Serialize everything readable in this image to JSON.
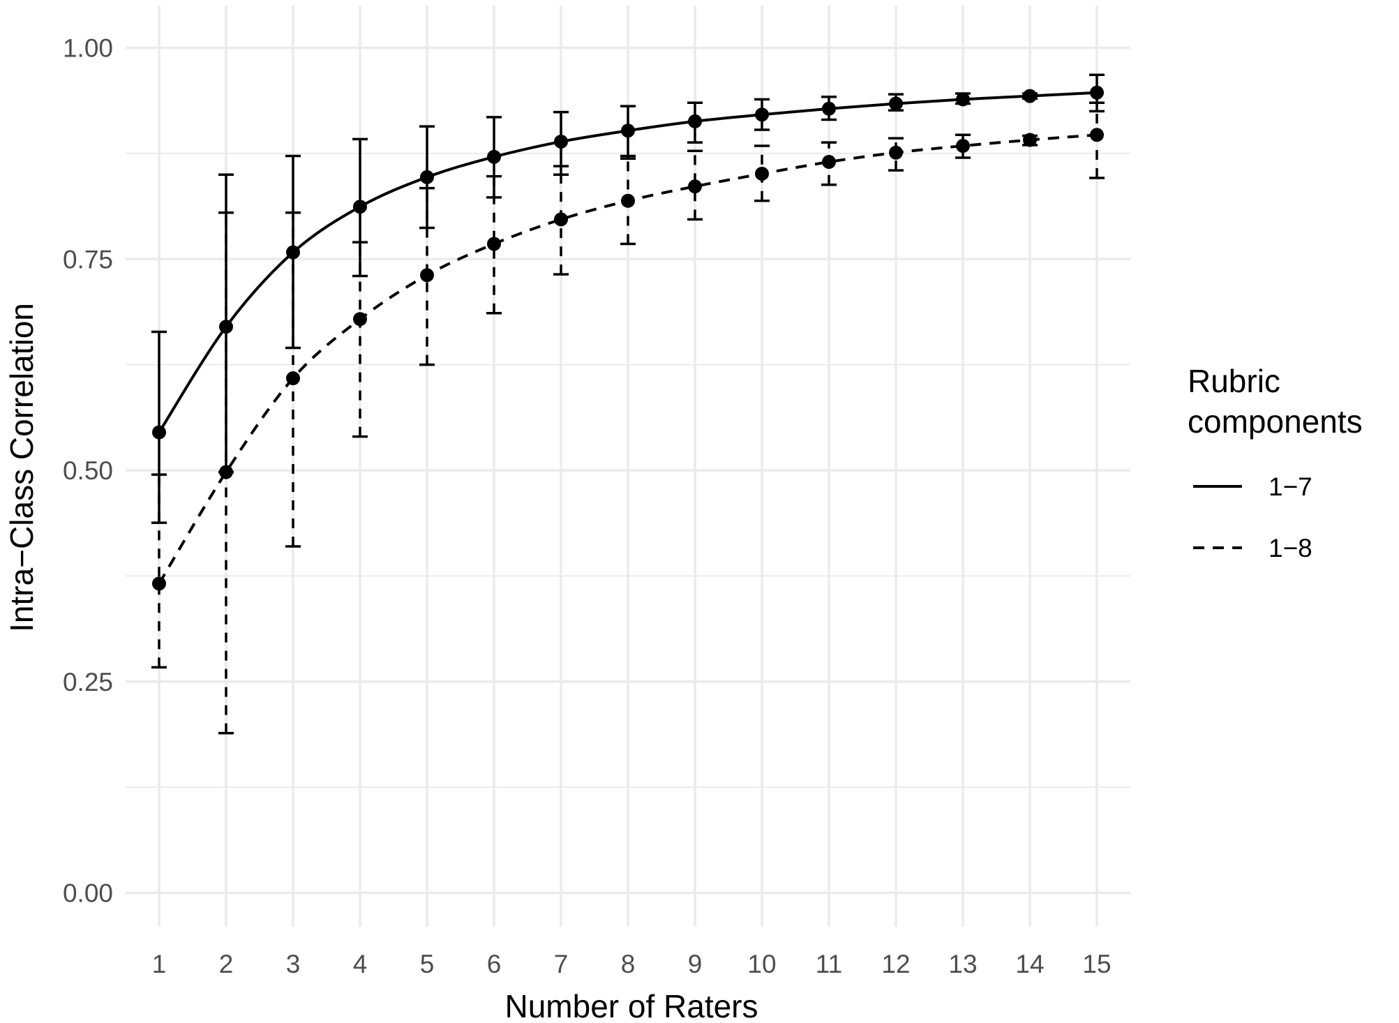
{
  "chart_data": {
    "type": "line",
    "xlabel": "Number of Raters",
    "ylabel": "Intra−Class Correlation",
    "x": [
      1,
      2,
      3,
      4,
      5,
      6,
      7,
      8,
      9,
      10,
      11,
      12,
      13,
      14,
      15
    ],
    "x_tick_labels": [
      "1",
      "2",
      "3",
      "4",
      "5",
      "6",
      "7",
      "8",
      "9",
      "10",
      "11",
      "12",
      "13",
      "14",
      "15"
    ],
    "y_tick_labels": [
      "0.00",
      "0.25",
      "0.50",
      "0.75",
      "1.00"
    ],
    "y_ticks": [
      0,
      0.25,
      0.5,
      0.75,
      1.0
    ],
    "xlim": [
      0.5,
      15.5
    ],
    "ylim": [
      -0.04,
      1.05
    ],
    "grid": true,
    "legend": {
      "title_lines": [
        "Rubric",
        "components"
      ],
      "placement": "right"
    },
    "series": [
      {
        "name": "1−7",
        "line_style": "solid",
        "color": "#000000",
        "values": [
          0.545,
          0.67,
          0.758,
          0.812,
          0.847,
          0.871,
          0.889,
          0.902,
          0.913,
          0.921,
          0.928,
          0.934,
          0.939,
          0.943,
          0.947
        ],
        "lower": [
          0.438,
          0.498,
          0.645,
          0.73,
          0.787,
          0.823,
          0.85,
          0.869,
          0.888,
          0.903,
          0.915,
          0.926,
          0.934,
          0.94,
          0.925
        ],
        "upper": [
          0.664,
          0.85,
          0.872,
          0.892,
          0.907,
          0.918,
          0.924,
          0.931,
          0.935,
          0.939,
          0.942,
          0.945,
          0.946,
          0.946,
          0.968
        ]
      },
      {
        "name": "1−8",
        "line_style": "dashed",
        "color": "#000000",
        "values": [
          0.366,
          0.498,
          0.609,
          0.679,
          0.731,
          0.768,
          0.797,
          0.819,
          0.836,
          0.851,
          0.865,
          0.876,
          0.884,
          0.891,
          0.897
        ],
        "lower": [
          0.267,
          0.189,
          0.41,
          0.54,
          0.625,
          0.686,
          0.732,
          0.768,
          0.797,
          0.819,
          0.838,
          0.855,
          0.87,
          0.885,
          0.846
        ],
        "upper": [
          0.495,
          0.805,
          0.805,
          0.77,
          0.834,
          0.848,
          0.86,
          0.872,
          0.878,
          0.884,
          0.888,
          0.893,
          0.897,
          0.896,
          0.935
        ]
      }
    ]
  }
}
